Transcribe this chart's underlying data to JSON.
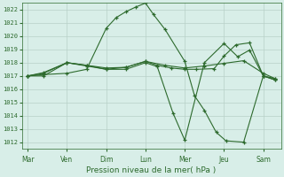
{
  "background_color": "#d8eee8",
  "grid_color": "#b8d0c8",
  "line_color": "#2d6a2d",
  "title": "Pression niveau de la mer( hPa )",
  "ylim": [
    1011.5,
    1022.5
  ],
  "yticks": [
    1012,
    1013,
    1014,
    1015,
    1016,
    1017,
    1018,
    1019,
    1020,
    1021,
    1022
  ],
  "x_labels": [
    "Mar",
    "Ven",
    "Dim",
    "Lun",
    "Mer",
    "Jeu",
    "Sam"
  ],
  "x_tick_positions": [
    0,
    1,
    2,
    3,
    4,
    5,
    6
  ],
  "xlim": [
    -0.15,
    6.45
  ],
  "series": [
    {
      "x": [
        0,
        0.4,
        1.0,
        1.5,
        2.0,
        2.25,
        2.5,
        2.75,
        3.0,
        3.2,
        3.5,
        4.0,
        4.25,
        4.5,
        4.8,
        5.05,
        5.5,
        6.0,
        6.3
      ],
      "y": [
        1017.0,
        1017.1,
        1017.2,
        1017.5,
        1020.6,
        1021.4,
        1021.85,
        1022.2,
        1022.5,
        1021.65,
        1020.5,
        1018.1,
        1015.5,
        1014.4,
        1012.75,
        1012.1,
        1012.0,
        1017.0,
        1016.7
      ]
    },
    {
      "x": [
        0,
        0.4,
        1.0,
        1.5,
        2.0,
        2.5,
        3.0,
        3.3,
        3.65,
        4.0,
        4.3,
        4.75,
        5.0,
        5.3,
        5.65,
        6.0,
        6.3
      ],
      "y": [
        1017.0,
        1017.2,
        1018.0,
        1017.75,
        1017.5,
        1017.65,
        1018.1,
        1017.8,
        1017.6,
        1017.5,
        1017.5,
        1017.55,
        1018.5,
        1019.35,
        1019.5,
        1017.0,
        1016.8
      ]
    },
    {
      "x": [
        0,
        0.4,
        1.0,
        1.5,
        2.0,
        2.5,
        3.0,
        3.5,
        4.0,
        4.5,
        5.0,
        5.5,
        6.0,
        6.3
      ],
      "y": [
        1017.0,
        1017.25,
        1018.0,
        1017.8,
        1017.6,
        1017.65,
        1018.1,
        1017.8,
        1017.6,
        1017.75,
        1017.95,
        1018.15,
        1017.2,
        1016.8
      ]
    },
    {
      "x": [
        0,
        0.4,
        1.0,
        1.5,
        2.0,
        2.5,
        3.0,
        3.3,
        3.7,
        4.0,
        4.5,
        5.0,
        5.35,
        5.65,
        6.0,
        6.3
      ],
      "y": [
        1017.0,
        1017.0,
        1018.0,
        1017.8,
        1017.5,
        1017.5,
        1018.0,
        1017.7,
        1014.2,
        1012.15,
        1018.0,
        1019.45,
        1018.45,
        1018.95,
        1017.0,
        1016.7
      ]
    }
  ]
}
